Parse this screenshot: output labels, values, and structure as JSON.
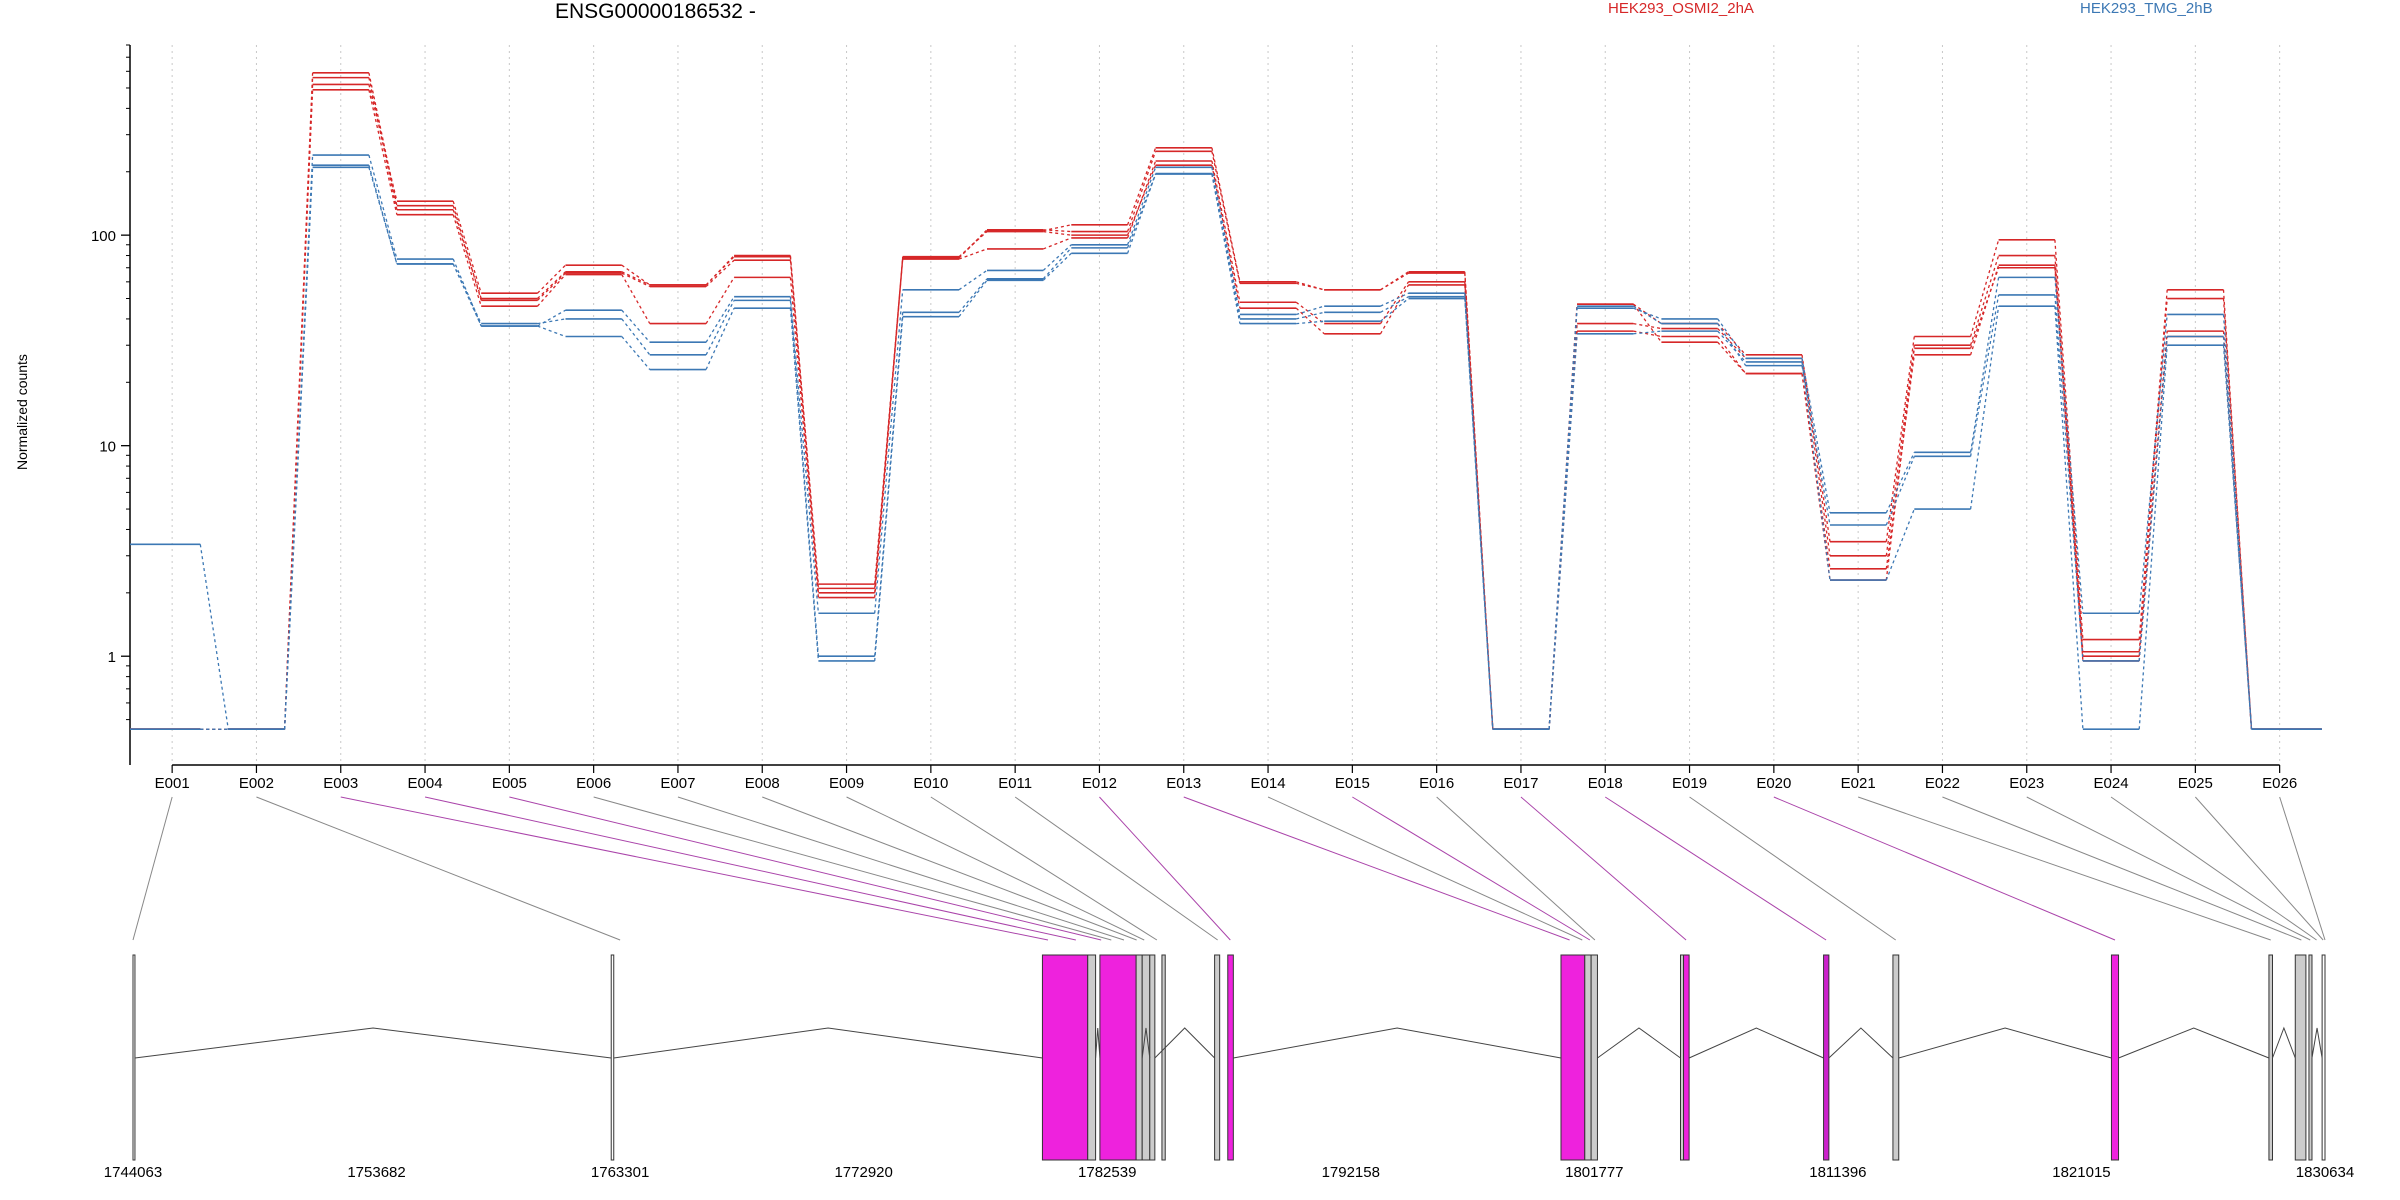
{
  "chart_data": {
    "type": "line",
    "title": "ENSG00000186532 -",
    "ylabel": "Normalized counts",
    "xlabel": "",
    "yscale": "log",
    "yticks": [
      "1",
      "10",
      "100"
    ],
    "ytick_values": [
      1,
      10,
      100
    ],
    "ylim": [
      0.4,
      800
    ],
    "grid": "vertical dotted",
    "legend_position": "top",
    "categories": [
      "E001",
      "E002",
      "E003",
      "E004",
      "E005",
      "E006",
      "E007",
      "E008",
      "E009",
      "E010",
      "E011",
      "E012",
      "E013",
      "E014",
      "E015",
      "E016",
      "E017",
      "E018",
      "E019",
      "E020",
      "E021",
      "E022",
      "E023",
      "E024",
      "E025",
      "E026"
    ],
    "series": [
      {
        "name": "HEK293_OSMI2_2hA",
        "color": "#d62728",
        "values": [
          0.45,
          0.45,
          520,
          145,
          53,
          72,
          58,
          80,
          2.1,
          78,
          105,
          112,
          260,
          60,
          55,
          67,
          0.45,
          47,
          38,
          27,
          3.5,
          33,
          95,
          1.2,
          55,
          0.45
        ]
      },
      {
        "name": "",
        "color": "#d62728",
        "values": [
          0.45,
          0.45,
          560,
          132,
          50,
          67,
          58,
          79,
          2.2,
          78,
          106,
          104,
          250,
          59,
          55,
          66,
          0.45,
          38,
          36,
          26,
          3.0,
          30,
          80,
          1.05,
          50,
          0.45
        ]
      },
      {
        "name": "",
        "color": "#d62728",
        "values": [
          0.45,
          0.45,
          490,
          125,
          46,
          65,
          38,
          63,
          1.9,
          77,
          86,
          97,
          225,
          48,
          38,
          60,
          0.45,
          35,
          33,
          22,
          2.6,
          27,
          72,
          1.0,
          35,
          0.45
        ]
      },
      {
        "name": "",
        "color": "#d62728",
        "values": [
          0.45,
          0.45,
          590,
          138,
          49,
          66,
          57,
          76,
          2.0,
          79,
          104,
          100,
          215,
          45,
          34,
          58,
          0.45,
          47,
          31,
          22,
          2.3,
          29,
          70,
          0.95,
          33,
          0.45
        ]
      },
      {
        "name": "HEK293_TMG_2hB",
        "color": "#3c78b4",
        "values": [
          3.4,
          0.45,
          240,
          77,
          37,
          44,
          31,
          51,
          1.6,
          55,
          68,
          90,
          210,
          42,
          46,
          53,
          0.45,
          45,
          40,
          26,
          4.8,
          9.3,
          63,
          1.6,
          42,
          0.45
        ]
      },
      {
        "name": "",
        "color": "#3c78b4",
        "values": [
          0.45,
          0.45,
          215,
          73,
          38,
          40,
          27,
          49,
          1.0,
          43,
          62,
          87,
          196,
          40,
          43,
          51,
          0.45,
          46,
          38,
          24,
          4.2,
          8.9,
          52,
          0.95,
          33,
          0.45
        ]
      },
      {
        "name": "",
        "color": "#3c78b4",
        "values": [
          0.45,
          0.45,
          210,
          73,
          37,
          33,
          23,
          45,
          0.95,
          41,
          61,
          82,
          195,
          38,
          39,
          50,
          0.45,
          34,
          35,
          25,
          2.3,
          5.0,
          46,
          0.45,
          30,
          0.45
        ]
      }
    ],
    "x_ticks_genomic": [
      "1744063",
      "1753682",
      "1763301",
      "1772920",
      "1782539",
      "1792158",
      "1801777",
      "1811396",
      "1821015",
      "1830634"
    ]
  }
}
